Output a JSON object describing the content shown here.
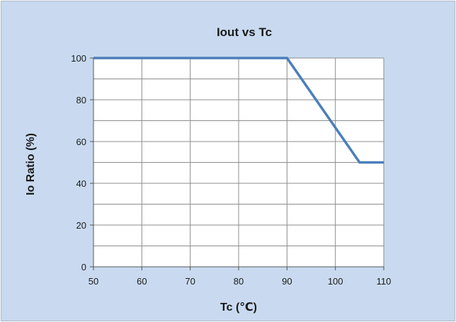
{
  "chart_data": {
    "type": "line",
    "title": "Iout vs Tc",
    "xlabel": "Tc (℃)",
    "ylabel": "Io Ratio (%)",
    "xlim": [
      50,
      110
    ],
    "ylim": [
      0,
      100
    ],
    "xticks": [
      50,
      60,
      70,
      80,
      90,
      100,
      110
    ],
    "yticks": [
      0,
      20,
      40,
      60,
      80,
      100
    ],
    "grid": true,
    "legend": "none",
    "series": [
      {
        "color": "#4a7ebb",
        "x": [
          50,
          90,
          105,
          110
        ],
        "y": [
          100,
          100,
          50,
          50
        ]
      }
    ]
  }
}
